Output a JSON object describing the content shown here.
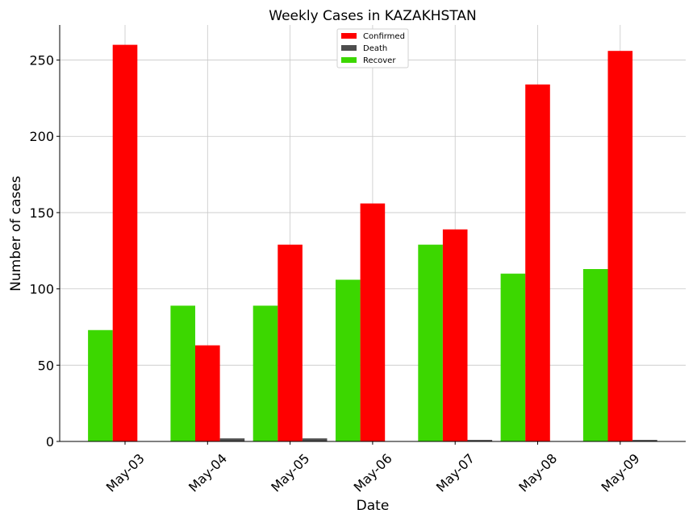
{
  "chart_data": {
    "type": "bar",
    "title": "Weekly Cases in KAZAKHSTAN",
    "xlabel": "Date",
    "ylabel": "Number of cases",
    "categories": [
      "May-03",
      "May-04",
      "May-05",
      "May-06",
      "May-07",
      "May-08",
      "May-09"
    ],
    "series": [
      {
        "name": "Recover",
        "color": "#3cd700",
        "values": [
          73,
          89,
          89,
          106,
          129,
          110,
          113
        ]
      },
      {
        "name": "Confirmed",
        "color": "#ff0000",
        "values": [
          260,
          63,
          129,
          156,
          139,
          234,
          256
        ]
      },
      {
        "name": "Death",
        "color": "#4d4d4d",
        "values": [
          0,
          2,
          2,
          0,
          1,
          0,
          1
        ]
      }
    ],
    "legend_order": [
      "Confirmed",
      "Death",
      "Recover"
    ],
    "ylim": [
      0,
      273
    ],
    "yticks": [
      0,
      50,
      100,
      150,
      200,
      250
    ],
    "grid": true,
    "legend_position": "top-center"
  }
}
